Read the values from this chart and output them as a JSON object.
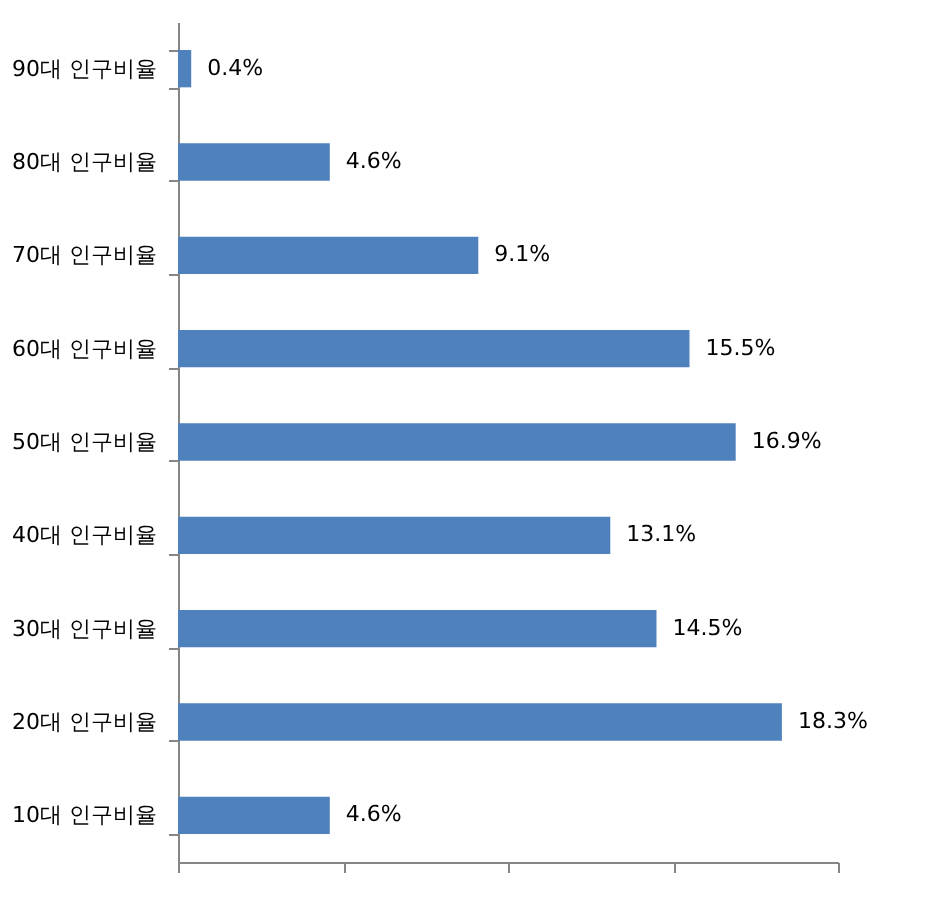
{
  "chart_data": {
    "type": "bar",
    "orientation": "horizontal",
    "categories": [
      "90대 인구비율",
      "80대 인구비율",
      "70대 인구비율",
      "60대 인구비율",
      "50대 인구비율",
      "40대 인구비율",
      "30대 인구비율",
      "20대 인구비율",
      "10대 인구비율"
    ],
    "values": [
      0.4,
      4.6,
      9.1,
      15.5,
      16.9,
      13.1,
      14.5,
      18.3,
      4.6
    ],
    "value_labels": [
      "0.4%",
      "4.6%",
      "9.1%",
      "15.5%",
      "16.9%",
      "13.1%",
      "14.5%",
      "18.3%",
      "4.6%"
    ],
    "color": "#4f81bd",
    "xlim": [
      0,
      20
    ],
    "xticks": [
      {
        "value": 0,
        "label": null
      },
      {
        "value": 5,
        "label": null
      },
      {
        "value": 10,
        "label": null
      },
      {
        "value": 15,
        "label": null
      },
      {
        "value": 20,
        "label": null
      }
    ],
    "tick_labels": "y",
    "grid": false
  }
}
